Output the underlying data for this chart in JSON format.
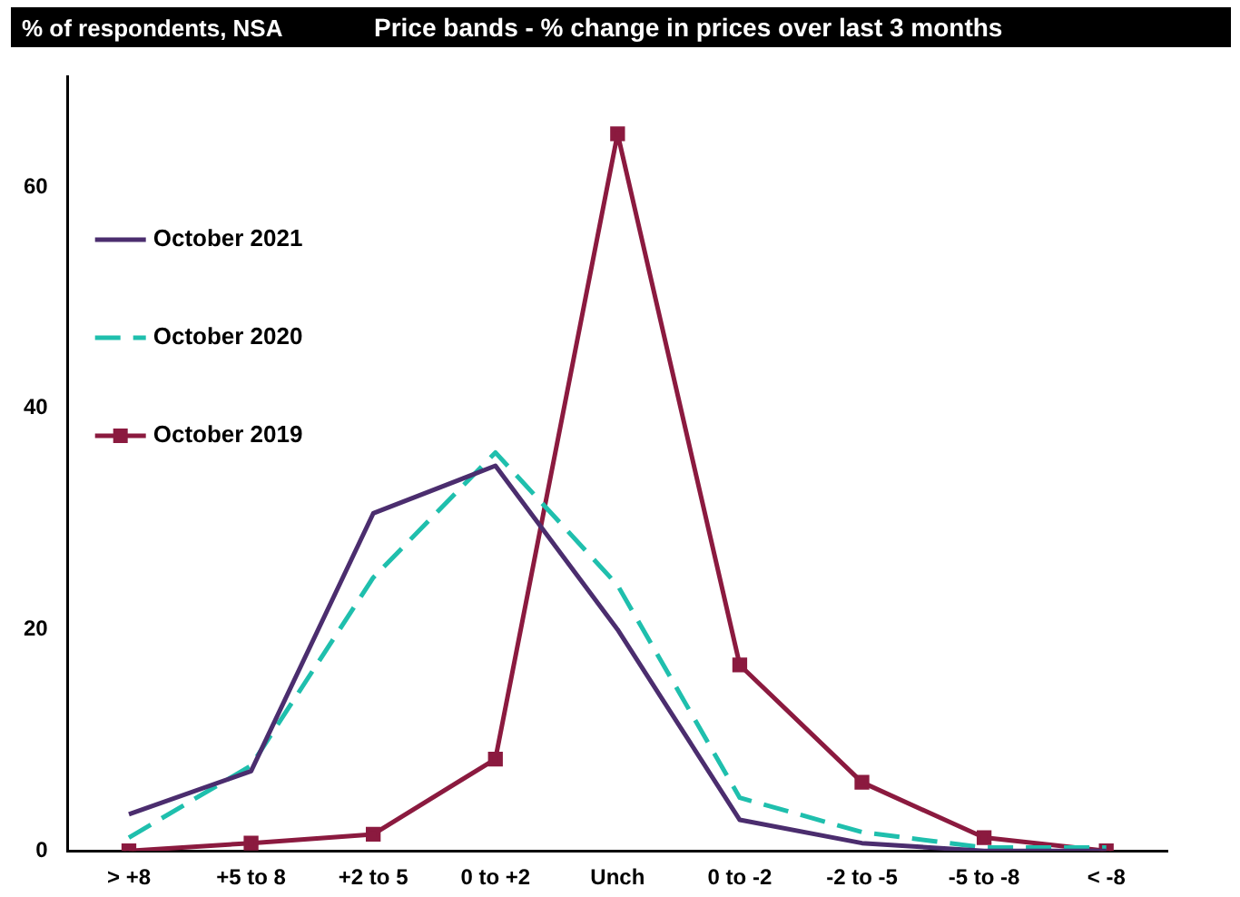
{
  "chart_data": {
    "type": "line",
    "title": "Price bands - % change in prices over last 3 months",
    "ylabel": "% of respondents, NSA",
    "categories": [
      "> +8",
      "+5 to 8",
      "+2 to 5",
      "0 to +2",
      "Unch",
      "0 to -2",
      "-2 to -5",
      "-5 to -8",
      "< -8"
    ],
    "series": [
      {
        "name": "October 2021",
        "color": "#4b2d6e",
        "line_style": "solid",
        "marker": "none",
        "values": [
          3.3,
          7.2,
          30.5,
          34.8,
          20,
          2.8,
          0.7,
          0,
          0
        ]
      },
      {
        "name": "October 2020",
        "color": "#1fbfad",
        "line_style": "dashed",
        "marker": "none",
        "values": [
          1.2,
          7.7,
          24.7,
          36,
          24,
          4.8,
          1.7,
          0.3,
          0.3
        ]
      },
      {
        "name": "October 2019",
        "color": "#8b1a3f",
        "line_style": "solid",
        "marker": "square",
        "values": [
          0,
          0.7,
          1.5,
          8.3,
          64.8,
          16.8,
          6.2,
          1.2,
          0
        ]
      }
    ],
    "ylim": [
      0,
      70
    ],
    "yticks": [
      0,
      20,
      40,
      60
    ],
    "grid": false,
    "legend": "left"
  }
}
